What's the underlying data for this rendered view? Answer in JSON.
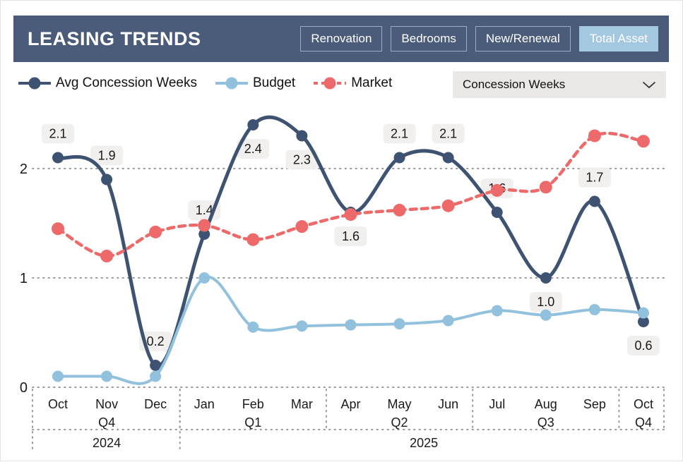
{
  "colors": {
    "header_bg": "#4a5c7a",
    "active_tab_bg": "#a5c8e1",
    "tab_border": "#b9cde2",
    "badge_bg": "#f1efee",
    "grid": "#9a9a9a",
    "dropdown_bg": "#e9e8e6",
    "text": "#1a1a1a"
  },
  "header": {
    "title": "LEASING TRENDS",
    "tabs": [
      {
        "label": "Renovation",
        "active": false
      },
      {
        "label": "Bedrooms",
        "active": false
      },
      {
        "label": "New/Renewal",
        "active": false
      },
      {
        "label": "Total Asset",
        "active": true
      }
    ]
  },
  "controls": {
    "dropdown": {
      "value": "Concession Weeks",
      "icon": "chevron-down-icon"
    }
  },
  "legend": [
    {
      "label": "Avg Concession Weeks",
      "color": "#3e5371",
      "dashed": false
    },
    {
      "label": "Budget",
      "color": "#92c1dd",
      "dashed": false
    },
    {
      "label": "Market",
      "color": "#ee6a6a",
      "dashed": true
    }
  ],
  "chart_data": {
    "type": "line",
    "title": "LEASING TRENDS",
    "xlabel": "",
    "ylabel": "Concession Weeks",
    "x": [
      "Oct",
      "Nov",
      "Dec",
      "Jan",
      "Feb",
      "Mar",
      "Apr",
      "May",
      "Jun",
      "Jul",
      "Aug",
      "Sep",
      "Oct"
    ],
    "quarters": [
      {
        "label": "Q4",
        "start": 0,
        "end": 2
      },
      {
        "label": "Q1",
        "start": 3,
        "end": 5
      },
      {
        "label": "Q2",
        "start": 6,
        "end": 8
      },
      {
        "label": "Q3",
        "start": 9,
        "end": 11
      },
      {
        "label": "Q4",
        "start": 12,
        "end": 12
      }
    ],
    "years": [
      {
        "label": "2024",
        "start": 0,
        "end": 2
      },
      {
        "label": "2025",
        "start": 3,
        "end": 12
      }
    ],
    "yticks": [
      0,
      1,
      2
    ],
    "ylim": [
      0,
      2.6
    ],
    "grid": true,
    "legend_position": "top-left",
    "series": [
      {
        "name": "Avg Concession Weeks",
        "color": "#3e5371",
        "style": "solid",
        "width": 5,
        "marker_r": 8,
        "values": [
          2.1,
          1.9,
          0.2,
          1.4,
          2.4,
          2.3,
          1.6,
          2.1,
          2.1,
          1.6,
          1.0,
          1.7,
          0.6
        ],
        "data_labels": true,
        "label_side": [
          "above",
          "above",
          "above",
          "above",
          "below",
          "below",
          "below",
          "above",
          "above",
          "above",
          "below",
          "above",
          "below"
        ]
      },
      {
        "name": "Budget",
        "color": "#92c1dd",
        "style": "solid",
        "width": 4,
        "marker_r": 8,
        "values": [
          0.1,
          0.1,
          0.1,
          1.0,
          0.55,
          0.56,
          0.57,
          0.58,
          0.61,
          0.7,
          0.66,
          0.71,
          0.68
        ],
        "data_labels": false
      },
      {
        "name": "Market",
        "color": "#ee6a6a",
        "style": "dashed",
        "width": 4.5,
        "marker_r": 9,
        "values": [
          1.45,
          1.2,
          1.42,
          1.48,
          1.35,
          1.47,
          1.58,
          1.62,
          1.66,
          1.8,
          1.83,
          2.3,
          2.25
        ],
        "data_labels": false
      }
    ]
  }
}
